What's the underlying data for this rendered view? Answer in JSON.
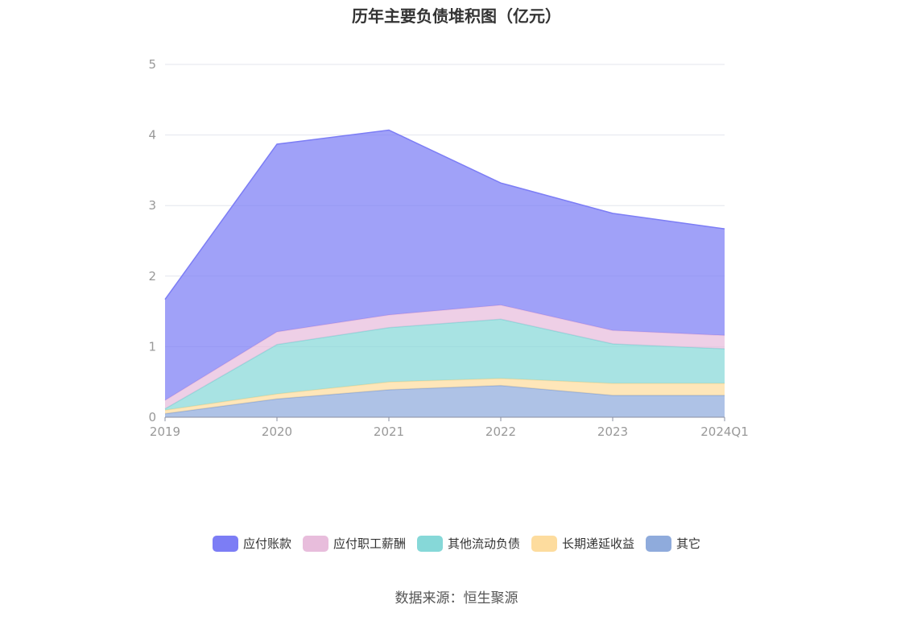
{
  "title": "历年主要负债堆积图（亿元）",
  "source": "数据来源：恒生聚源",
  "chart_data": {
    "type": "area",
    "stacked": true,
    "categories": [
      "2019",
      "2020",
      "2021",
      "2022",
      "2023",
      "2024Q1"
    ],
    "ylim": [
      0,
      5
    ],
    "yticks": [
      "0",
      "1",
      "2",
      "3",
      "4",
      "5"
    ],
    "grid": true,
    "legend_position": "bottom",
    "series": [
      {
        "name": "其它",
        "color": "#8fabdc",
        "values": [
          0.05,
          0.26,
          0.39,
          0.45,
          0.31,
          0.31
        ]
      },
      {
        "name": "长期递延收益",
        "color": "#fddc9e",
        "values": [
          0.05,
          0.07,
          0.11,
          0.1,
          0.17,
          0.17
        ]
      },
      {
        "name": "其他流动负债",
        "color": "#86d8d8",
        "values": [
          0.02,
          0.7,
          0.77,
          0.84,
          0.56,
          0.49
        ]
      },
      {
        "name": "应付职工薪酬",
        "color": "#e8bddc",
        "values": [
          0.12,
          0.18,
          0.18,
          0.2,
          0.19,
          0.19
        ]
      },
      {
        "name": "应付账款",
        "color": "#7c7df5",
        "values": [
          1.43,
          2.66,
          2.62,
          1.73,
          1.66,
          1.51
        ]
      }
    ],
    "legend_order": [
      "应付账款",
      "应付职工薪酬",
      "其他流动负债",
      "长期递延收益",
      "其它"
    ]
  }
}
